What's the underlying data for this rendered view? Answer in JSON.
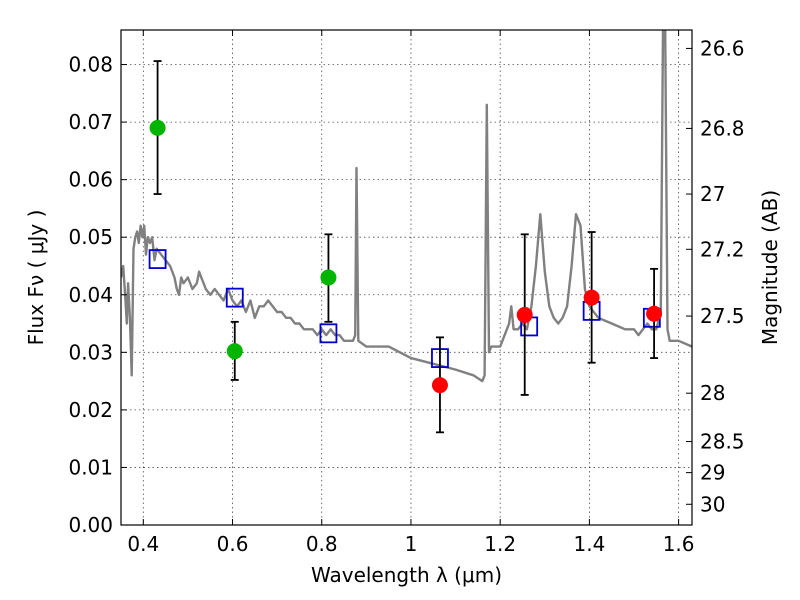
{
  "chart_data": {
    "type": "scatter",
    "xlabel": "Wavelength  λ (μm)",
    "ylabel": "Flux  Fν  ( μJy )",
    "ylabel_right": "Magnitude (AB)",
    "xlim": [
      0.35,
      1.63
    ],
    "ylim": [
      0.0,
      0.086
    ],
    "grid": true,
    "x_ticks": [
      0.4,
      0.6,
      0.8,
      1.0,
      1.2,
      1.4,
      1.6
    ],
    "x_tick_labels": [
      "0.4",
      "0.6",
      "0.8",
      "1",
      "1.2",
      "1.4",
      "1.6"
    ],
    "y_ticks": [
      0.0,
      0.01,
      0.02,
      0.03,
      0.04,
      0.05,
      0.06,
      0.07,
      0.08
    ],
    "y_tick_labels": [
      "0.00",
      "0.01",
      "0.02",
      "0.03",
      "0.04",
      "0.05",
      "0.06",
      "0.07",
      "0.08"
    ],
    "right_ticks": [
      {
        "flux": 0.0828,
        "label": "26.6"
      },
      {
        "flux": 0.0689,
        "label": "26.8"
      },
      {
        "flux": 0.0575,
        "label": "27"
      },
      {
        "flux": 0.0479,
        "label": "27.2"
      },
      {
        "flux": 0.0363,
        "label": "27.5"
      },
      {
        "flux": 0.0229,
        "label": "28"
      },
      {
        "flux": 0.0145,
        "label": "28.5"
      },
      {
        "flux": 0.0091,
        "label": "29"
      },
      {
        "flux": 0.0036,
        "label": "30"
      }
    ],
    "series": [
      {
        "style": "line",
        "color": "#808080",
        "points": [
          [
            0.35,
            0.043
          ],
          [
            0.355,
            0.045
          ],
          [
            0.36,
            0.039
          ],
          [
            0.363,
            0.035
          ],
          [
            0.366,
            0.042
          ],
          [
            0.37,
            0.036
          ],
          [
            0.374,
            0.026
          ],
          [
            0.378,
            0.048
          ],
          [
            0.382,
            0.05
          ],
          [
            0.386,
            0.051
          ],
          [
            0.39,
            0.049
          ],
          [
            0.394,
            0.052
          ],
          [
            0.398,
            0.05
          ],
          [
            0.402,
            0.052
          ],
          [
            0.406,
            0.047
          ],
          [
            0.41,
            0.05
          ],
          [
            0.415,
            0.049
          ],
          [
            0.42,
            0.05
          ],
          [
            0.425,
            0.046
          ],
          [
            0.43,
            0.048
          ],
          [
            0.44,
            0.047
          ],
          [
            0.45,
            0.046
          ],
          [
            0.46,
            0.045
          ],
          [
            0.47,
            0.043
          ],
          [
            0.475,
            0.041
          ],
          [
            0.48,
            0.04
          ],
          [
            0.485,
            0.043
          ],
          [
            0.49,
            0.042
          ],
          [
            0.5,
            0.043
          ],
          [
            0.51,
            0.041
          ],
          [
            0.52,
            0.042
          ],
          [
            0.525,
            0.044
          ],
          [
            0.53,
            0.043
          ],
          [
            0.54,
            0.041
          ],
          [
            0.55,
            0.04
          ],
          [
            0.56,
            0.041
          ],
          [
            0.57,
            0.04
          ],
          [
            0.58,
            0.039
          ],
          [
            0.59,
            0.041
          ],
          [
            0.6,
            0.039
          ],
          [
            0.61,
            0.038
          ],
          [
            0.62,
            0.039
          ],
          [
            0.63,
            0.037
          ],
          [
            0.64,
            0.039
          ],
          [
            0.65,
            0.036
          ],
          [
            0.66,
            0.038
          ],
          [
            0.67,
            0.038
          ],
          [
            0.68,
            0.039
          ],
          [
            0.69,
            0.038
          ],
          [
            0.7,
            0.037
          ],
          [
            0.71,
            0.037
          ],
          [
            0.72,
            0.036
          ],
          [
            0.73,
            0.036
          ],
          [
            0.74,
            0.035
          ],
          [
            0.75,
            0.035
          ],
          [
            0.76,
            0.034
          ],
          [
            0.77,
            0.034
          ],
          [
            0.78,
            0.034
          ],
          [
            0.79,
            0.033
          ],
          [
            0.8,
            0.034
          ],
          [
            0.81,
            0.033
          ],
          [
            0.82,
            0.034
          ],
          [
            0.83,
            0.033
          ],
          [
            0.84,
            0.033
          ],
          [
            0.85,
            0.032
          ],
          [
            0.86,
            0.032
          ],
          [
            0.87,
            0.032
          ],
          [
            0.875,
            0.033
          ],
          [
            0.878,
            0.062
          ],
          [
            0.882,
            0.032
          ],
          [
            0.9,
            0.031
          ],
          [
            0.95,
            0.031
          ],
          [
            1.0,
            0.029
          ],
          [
            1.05,
            0.028
          ],
          [
            1.1,
            0.027
          ],
          [
            1.14,
            0.026
          ],
          [
            1.16,
            0.025
          ],
          [
            1.165,
            0.026
          ],
          [
            1.17,
            0.073
          ],
          [
            1.175,
            0.03
          ],
          [
            1.18,
            0.031
          ],
          [
            1.2,
            0.031
          ],
          [
            1.22,
            0.035
          ],
          [
            1.225,
            0.038
          ],
          [
            1.23,
            0.034
          ],
          [
            1.24,
            0.034
          ],
          [
            1.25,
            0.035
          ],
          [
            1.26,
            0.034
          ],
          [
            1.27,
            0.038
          ],
          [
            1.28,
            0.045
          ],
          [
            1.29,
            0.054
          ],
          [
            1.3,
            0.044
          ],
          [
            1.31,
            0.038
          ],
          [
            1.32,
            0.036
          ],
          [
            1.33,
            0.035
          ],
          [
            1.34,
            0.036
          ],
          [
            1.35,
            0.038
          ],
          [
            1.36,
            0.045
          ],
          [
            1.37,
            0.054
          ],
          [
            1.38,
            0.052
          ],
          [
            1.39,
            0.041
          ],
          [
            1.4,
            0.038
          ],
          [
            1.42,
            0.036
          ],
          [
            1.45,
            0.035
          ],
          [
            1.48,
            0.034
          ],
          [
            1.5,
            0.034
          ],
          [
            1.51,
            0.033
          ],
          [
            1.52,
            0.034
          ],
          [
            1.53,
            0.035
          ],
          [
            1.54,
            0.034
          ],
          [
            1.55,
            0.034
          ],
          [
            1.56,
            0.037
          ],
          [
            1.565,
            0.086
          ],
          [
            1.57,
            0.086
          ],
          [
            1.575,
            0.034
          ],
          [
            1.58,
            0.032
          ],
          [
            1.6,
            0.032
          ],
          [
            1.63,
            0.031
          ]
        ]
      },
      {
        "style": "open-square",
        "color": "#0000cc",
        "points": [
          [
            0.432,
            0.0462
          ],
          [
            0.605,
            0.0395
          ],
          [
            0.815,
            0.0333
          ],
          [
            1.065,
            0.029
          ],
          [
            1.265,
            0.0345
          ],
          [
            1.405,
            0.0372
          ],
          [
            1.54,
            0.036
          ]
        ]
      },
      {
        "style": "filled-circle-errorbar",
        "color": "#00b400",
        "points": [
          {
            "x": 0.432,
            "y": 0.069,
            "err_low": 0.0575,
            "err_high": 0.0806
          },
          {
            "x": 0.605,
            "y": 0.0302,
            "err_low": 0.0252,
            "err_high": 0.0353
          },
          {
            "x": 0.815,
            "y": 0.043,
            "err_low": 0.0353,
            "err_high": 0.0505
          }
        ]
      },
      {
        "style": "filled-circle-errorbar",
        "color": "#ff0000",
        "points": [
          {
            "x": 1.065,
            "y": 0.0243,
            "err_low": 0.0161,
            "err_high": 0.0326
          },
          {
            "x": 1.255,
            "y": 0.0365,
            "err_low": 0.0226,
            "err_high": 0.0505
          },
          {
            "x": 1.405,
            "y": 0.0395,
            "err_low": 0.0282,
            "err_high": 0.0509
          },
          {
            "x": 1.545,
            "y": 0.0367,
            "err_low": 0.029,
            "err_high": 0.0445
          }
        ]
      }
    ]
  }
}
